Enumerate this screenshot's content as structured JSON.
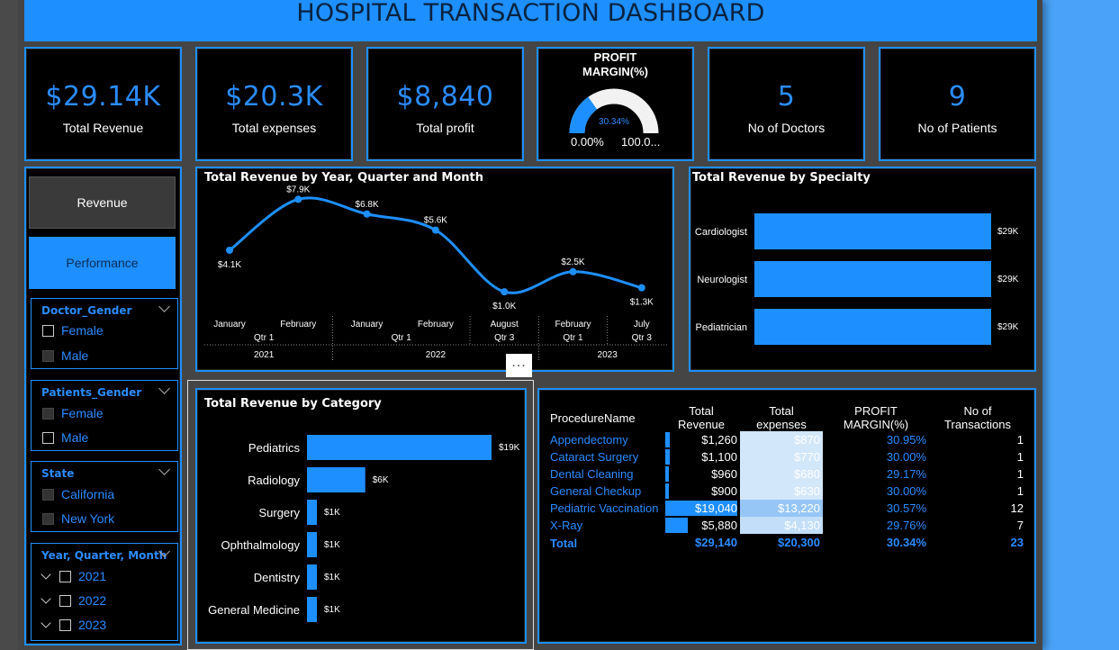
{
  "header": {
    "title": "HOSPITAL TRANSACTION DASHBOARD"
  },
  "kpis": [
    {
      "value": "$29.14K",
      "label": "Total Revenue"
    },
    {
      "value": "$20.3K",
      "label": "Total expenses"
    },
    {
      "value": "$8,840",
      "label": "Total profit"
    },
    {
      "value": "5",
      "label": "No of Doctors"
    },
    {
      "value": "9",
      "label": "No of Patients"
    }
  ],
  "gauge": {
    "title_line1": "PROFIT",
    "title_line2": "MARGIN(%)",
    "value_label": "30.34%",
    "value": 30.34,
    "min_label": "0.00%",
    "max_label": "100.0...",
    "fill_color": "#1e8fff",
    "track_color": "#f2f2f2"
  },
  "buttons": {
    "revenue": "Revenue",
    "performance": "Performance"
  },
  "slicers": {
    "doctor_gender": {
      "title": "Doctor_Gender",
      "options": [
        "Female",
        "Male"
      ]
    },
    "patients_gender": {
      "title": "Patients_Gender",
      "options": [
        "Female",
        "Male"
      ]
    },
    "state": {
      "title": "State",
      "options": [
        "California",
        "New York"
      ]
    },
    "year": {
      "title": "Year, Quarter, Month",
      "options": [
        "2021",
        "2022",
        "2023"
      ]
    }
  },
  "more_options": "...",
  "table": {
    "headers": [
      "ProcedureName",
      "Total Revenue",
      "Total expenses",
      "PROFIT MARGIN(%)",
      "No of Transactions"
    ],
    "rows": [
      {
        "name": "Appendectomy",
        "revenue": "$1,260",
        "revenue_value": 1260,
        "expenses": "$870",
        "expenses_value": 870,
        "margin": "30.95%",
        "count": "1"
      },
      {
        "name": "Cataract Surgery",
        "revenue": "$1,100",
        "revenue_value": 1100,
        "expenses": "$770",
        "expenses_value": 770,
        "margin": "30.00%",
        "count": "1"
      },
      {
        "name": "Dental Cleaning",
        "revenue": "$960",
        "revenue_value": 960,
        "expenses": "$680",
        "expenses_value": 680,
        "margin": "29.17%",
        "count": "1"
      },
      {
        "name": "General Checkup",
        "revenue": "$900",
        "revenue_value": 900,
        "expenses": "$630",
        "expenses_value": 630,
        "margin": "30.00%",
        "count": "1"
      },
      {
        "name": "Pediatric Vaccination",
        "revenue": "$19,040",
        "revenue_value": 19040,
        "expenses": "$13,220",
        "expenses_value": 13220,
        "margin": "30.57%",
        "count": "12"
      },
      {
        "name": "X-Ray",
        "revenue": "$5,880",
        "revenue_value": 5880,
        "expenses": "$4,130",
        "expenses_value": 4130,
        "margin": "29.76%",
        "count": "7"
      }
    ],
    "total": {
      "name": "Total",
      "revenue": "$29,140",
      "expenses": "$20,300",
      "margin": "30.34%",
      "count": "23"
    }
  },
  "chart_data": [
    {
      "type": "line",
      "title": "Total Revenue by Year, Quarter and Month",
      "x": [
        "January",
        "February",
        "January",
        "February",
        "August",
        "February",
        "July"
      ],
      "quarters": [
        "Qtr 1",
        "Qtr 1",
        "Qtr 3",
        "Qtr 1",
        "Qtr 3"
      ],
      "years": [
        "2021",
        "2022",
        "2023"
      ],
      "values": [
        4100,
        7900,
        6800,
        5600,
        1000,
        2500,
        1300
      ],
      "labels": [
        "$4.1K",
        "$7.9K",
        "$6.8K",
        "$5.6K",
        "$1.0K",
        "$2.5K",
        "$1.3K"
      ],
      "color": "#1e8fff",
      "grid": false
    },
    {
      "type": "bar",
      "orientation": "horizontal",
      "title": "Total Revenue by Specialty",
      "categories": [
        "Cardiologist",
        "Neurologist",
        "Pediatrician"
      ],
      "values": [
        29000,
        29000,
        29000
      ],
      "labels": [
        "$29K",
        "$29K",
        "$29K"
      ],
      "color": "#1e8fff"
    },
    {
      "type": "bar",
      "orientation": "horizontal",
      "title": "Total Revenue by Category",
      "categories": [
        "Pediatrics",
        "Radiology",
        "Surgery",
        "Ophthalmology",
        "Dentistry",
        "General Medicine"
      ],
      "values": [
        19000,
        6000,
        1000,
        1000,
        1000,
        1000
      ],
      "labels": [
        "$19K",
        "$6K",
        "$1K",
        "$1K",
        "$1K",
        "$1K"
      ],
      "color": "#1e8fff"
    }
  ]
}
